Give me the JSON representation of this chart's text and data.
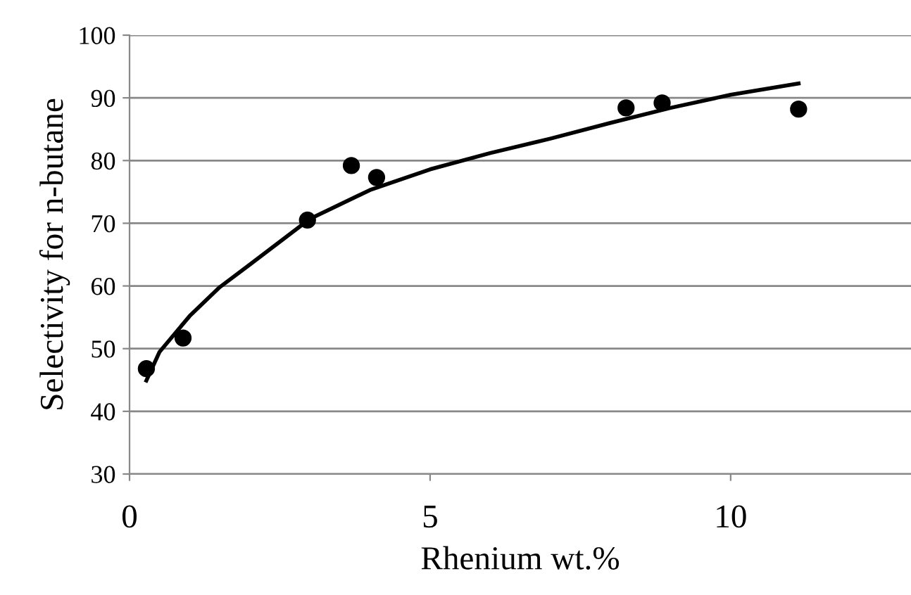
{
  "chart_data": {
    "type": "scatter",
    "xlabel": "Rhenium wt.%",
    "ylabel": "Selectivity for n-butane",
    "xlim": [
      0,
      13
    ],
    "xticks": [
      0,
      5,
      10
    ],
    "ylim": [
      30,
      100
    ],
    "yticks": [
      30,
      40,
      50,
      60,
      70,
      80,
      90,
      100
    ],
    "grid": "y",
    "marker": "circle",
    "series": [
      {
        "color": "#000000",
        "x": [
          0.28,
          0.89,
          2.96,
          3.69,
          4.11,
          8.26,
          8.86,
          11.13
        ],
        "values": [
          46.8,
          51.7,
          70.5,
          79.2,
          77.3,
          88.4,
          89.2,
          88.2
        ]
      },
      {
        "type": "line",
        "marker": "none",
        "color": "#000000",
        "x": [
          0.28,
          0.5,
          1,
          1.5,
          2,
          3,
          4,
          5,
          6,
          7,
          8,
          9,
          10,
          11.13
        ],
        "values": [
          44.9,
          49.5,
          55.2,
          59.8,
          63.4,
          70.7,
          75.3,
          78.6,
          81.2,
          83.5,
          86,
          88.4,
          90.5,
          92.3
        ]
      }
    ]
  }
}
